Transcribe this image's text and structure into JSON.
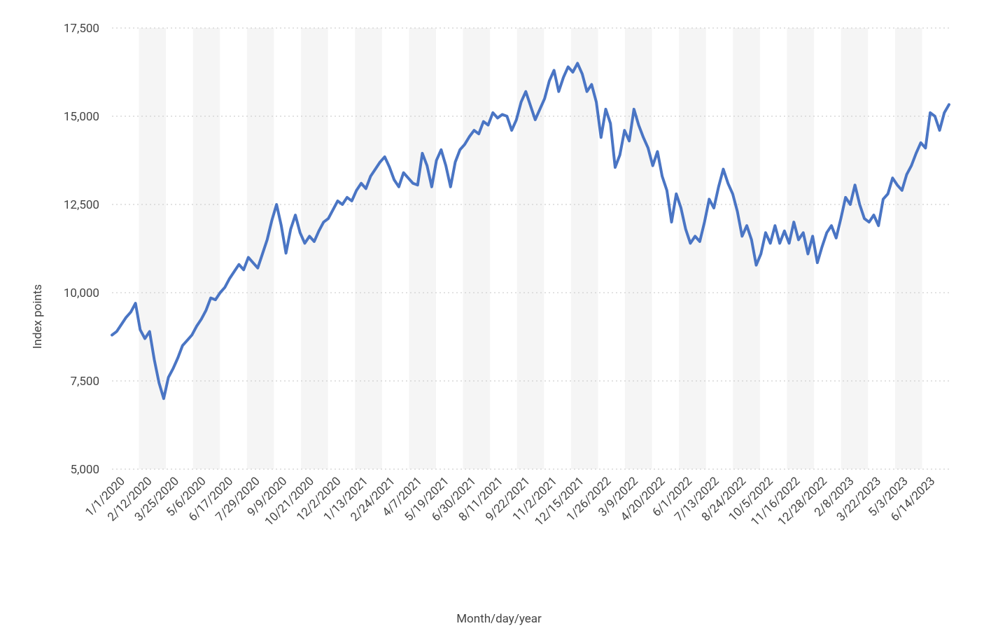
{
  "chart": {
    "type": "line",
    "ylabel": "Index points",
    "xlabel": "Month/day/year",
    "label_fontsize": 17,
    "tick_fontsize": 17,
    "line_color": "#4a75c4",
    "line_width": 4,
    "grid_color": "#d0d0d0",
    "background_color": "#ffffff",
    "plot_band_color": "#f5f5f5",
    "text_color": "#444444",
    "ylim": [
      5000,
      17500
    ],
    "yticks": [
      5000,
      7500,
      10000,
      12500,
      15000,
      17500
    ],
    "ytick_labels": [
      "5,000",
      "7,500",
      "10,000",
      "12,500",
      "15,000",
      "17,500"
    ],
    "x_categories": [
      "1/1/2020",
      "2/12/2020",
      "3/25/2020",
      "5/6/2020",
      "6/17/2020",
      "7/29/2020",
      "9/9/2020",
      "10/21/2020",
      "12/2/2020",
      "1/13/2021",
      "2/24/2021",
      "4/7/2021",
      "5/19/2021",
      "6/30/2021",
      "8/11/2021",
      "9/22/2021",
      "11/2/2021",
      "12/15/2021",
      "1/26/2022",
      "3/9/2022",
      "4/20/2022",
      "6/1/2022",
      "7/13/2022",
      "8/24/2022",
      "10/5/2022",
      "11/16/2022",
      "12/28/2022",
      "2/8/2023",
      "3/22/2023",
      "5/3/2023",
      "6/14/2023"
    ],
    "values": [
      8800,
      8900,
      9100,
      9300,
      9450,
      9700,
      8950,
      8700,
      8900,
      8100,
      7450,
      7000,
      7600,
      7850,
      8150,
      8500,
      8650,
      8800,
      9050,
      9250,
      9500,
      9850,
      9800,
      10000,
      10150,
      10400,
      10600,
      10800,
      10650,
      11000,
      10850,
      10700,
      11100,
      11500,
      12050,
      12500,
      11900,
      11120,
      11800,
      12200,
      11700,
      11400,
      11600,
      11450,
      11750,
      12000,
      12100,
      12350,
      12600,
      12500,
      12700,
      12600,
      12900,
      13100,
      12950,
      13300,
      13500,
      13700,
      13850,
      13560,
      13200,
      13000,
      13400,
      13250,
      13100,
      13050,
      13950,
      13600,
      13000,
      13750,
      14050,
      13600,
      13000,
      13700,
      14050,
      14200,
      14420,
      14600,
      14500,
      14850,
      14750,
      15100,
      14950,
      15050,
      15000,
      14600,
      14900,
      15400,
      15700,
      15300,
      14900,
      15200,
      15500,
      16000,
      16300,
      15700,
      16100,
      16400,
      16250,
      16500,
      16200,
      15700,
      15900,
      15400,
      14400,
      15200,
      14800,
      13550,
      13900,
      14600,
      14300,
      15200,
      14750,
      14400,
      14100,
      13600,
      14000,
      13300,
      12900,
      12000,
      12800,
      12400,
      11800,
      11400,
      11600,
      11450,
      12000,
      12650,
      12400,
      13000,
      13500,
      13100,
      12800,
      12300,
      11600,
      11900,
      11500,
      10780,
      11100,
      11700,
      11400,
      11900,
      11400,
      11750,
      11400,
      12000,
      11500,
      11700,
      11100,
      11600,
      10850,
      11300,
      11700,
      11900,
      11550,
      12100,
      12700,
      12500,
      13050,
      12500,
      12100,
      12000,
      12200,
      11900,
      12650,
      12800,
      13250,
      13050,
      12900,
      13350,
      13600,
      13950,
      14250,
      14100,
      15100,
      15000,
      14600,
      15100,
      15330
    ]
  }
}
